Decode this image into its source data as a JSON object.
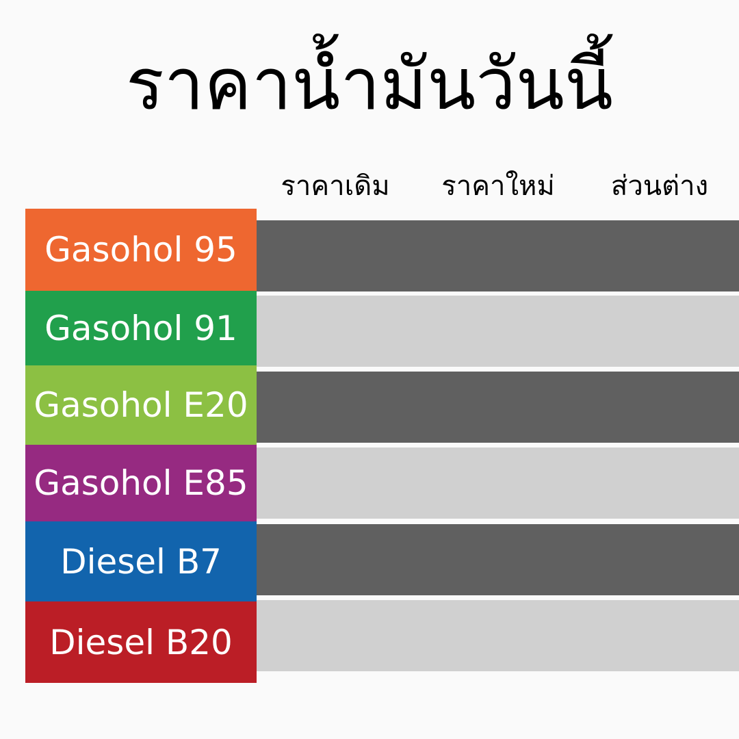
{
  "title": "ราคาน้ำมันวันนี้",
  "headers": {
    "old_price": "ราคาเดิม",
    "new_price": "ราคาใหม่",
    "difference": "ส่วนต่าง"
  },
  "fuels": [
    {
      "name": "Gasohol 95",
      "color": "#ee6730"
    },
    {
      "name": "Gasohol 91",
      "color": "#21a04c"
    },
    {
      "name": "Gasohol E20",
      "color": "#8cc043"
    },
    {
      "name": "Gasohol E85",
      "color": "#962a81"
    },
    {
      "name": "Diesel B7",
      "color": "#1264ad"
    },
    {
      "name": "Diesel B20",
      "color": "#bb1e26"
    }
  ],
  "row_colors": {
    "dark": "#606060",
    "light": "#d0d0d0"
  }
}
